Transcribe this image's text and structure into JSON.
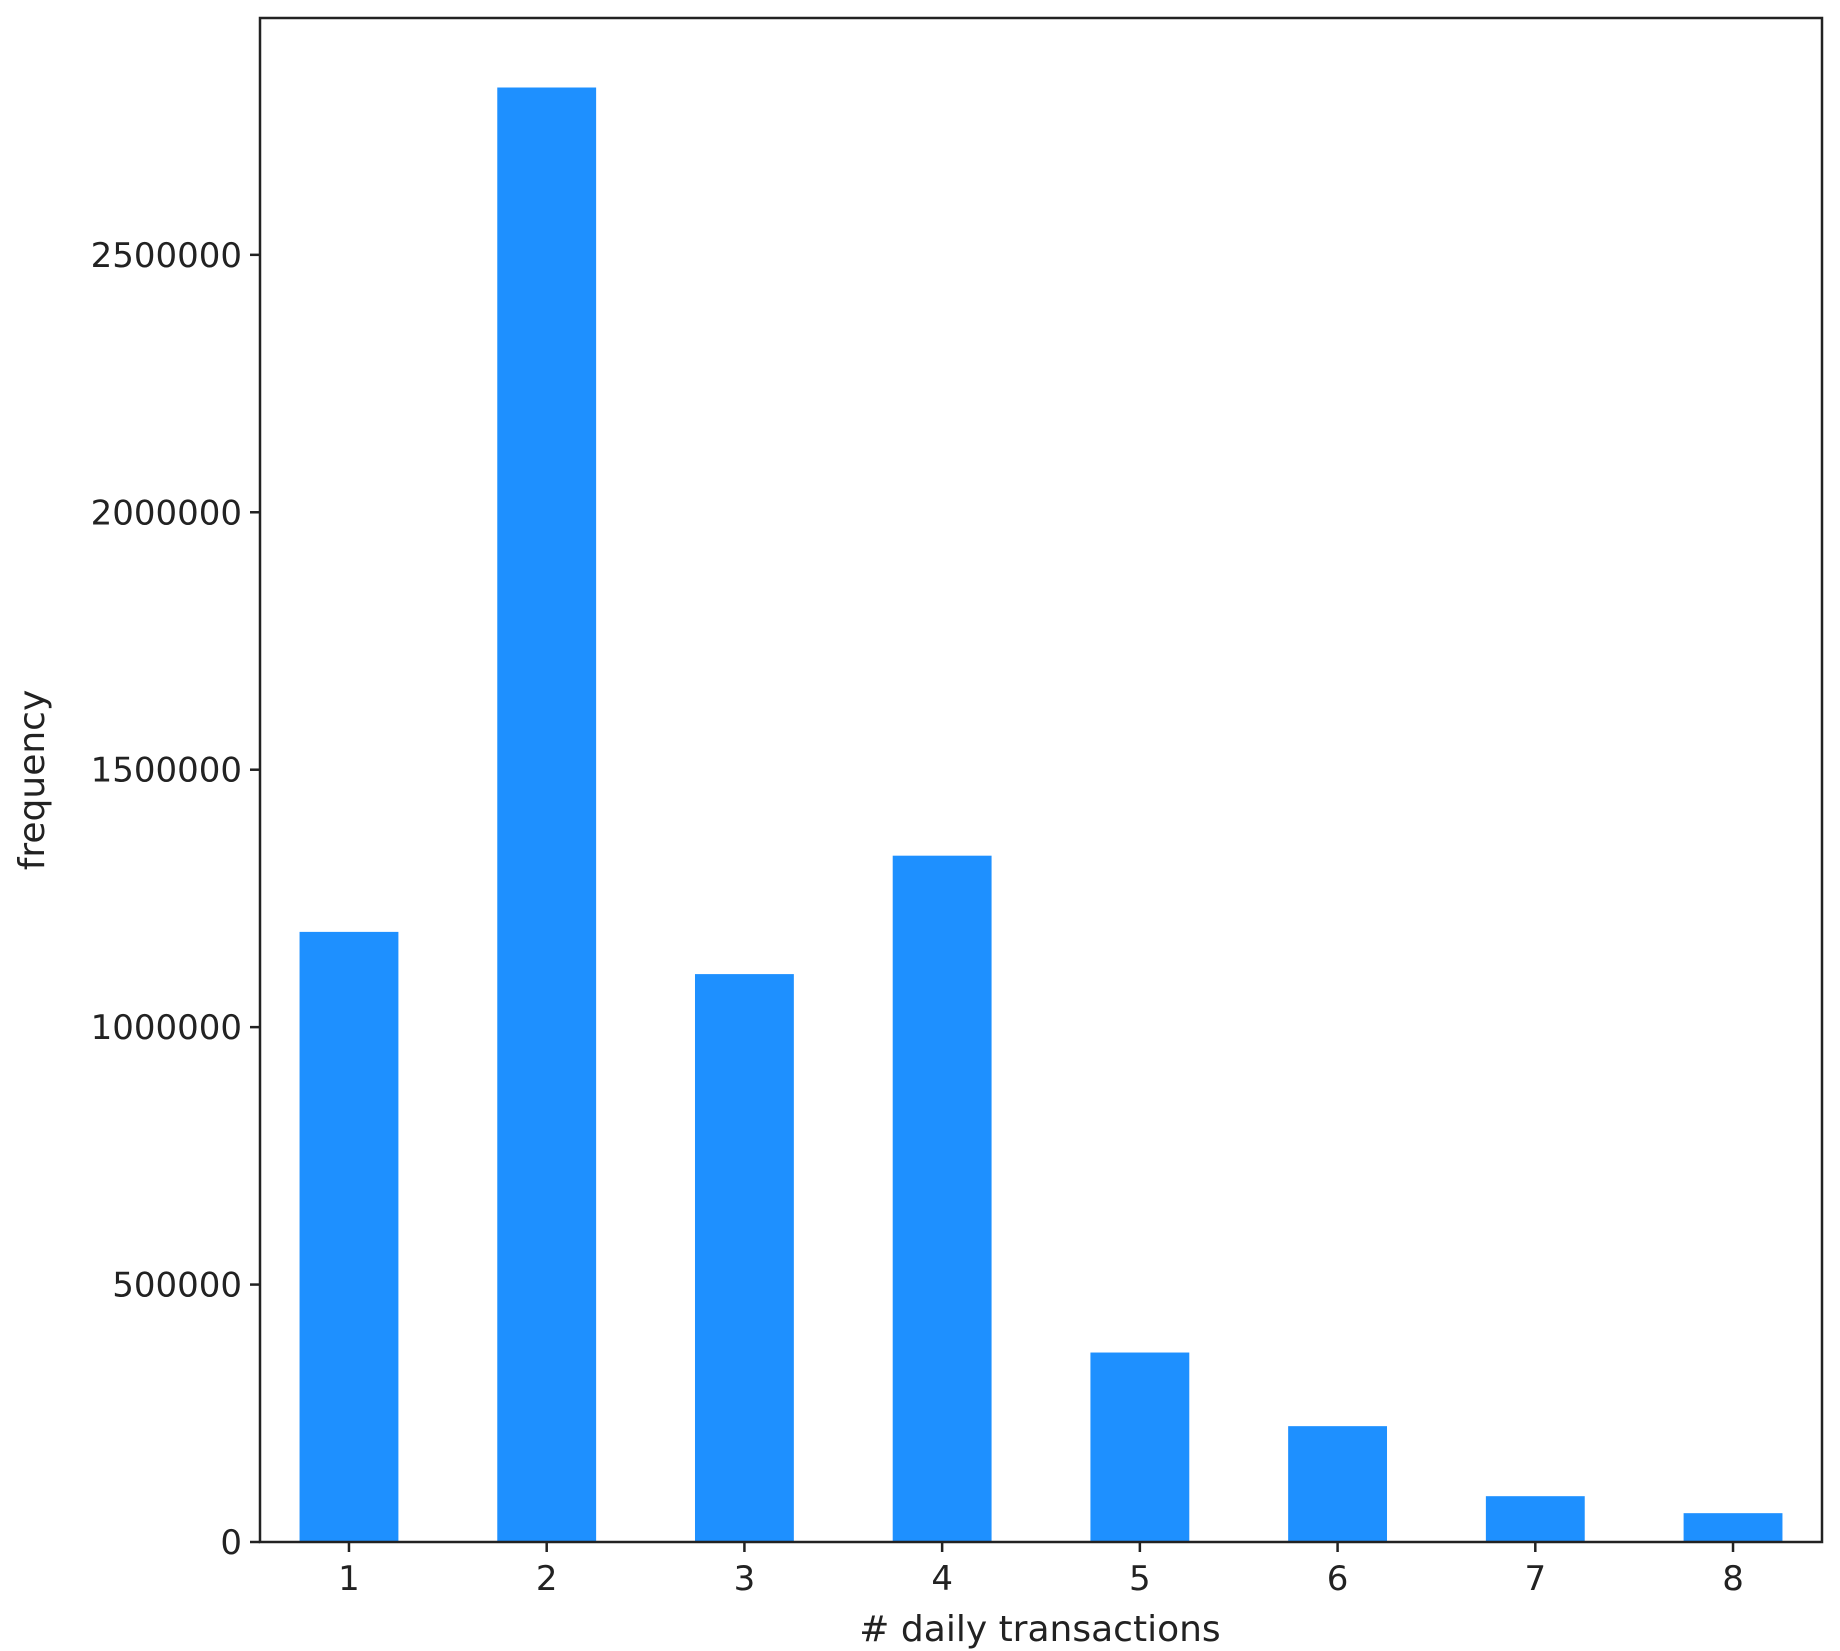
{
  "chart_data": {
    "type": "bar",
    "title": "",
    "xlabel": "# daily transactions",
    "ylabel": "frequency",
    "categories": [
      "1",
      "2",
      "3",
      "4",
      "5",
      "6",
      "7",
      "8"
    ],
    "values": [
      1185000,
      2825000,
      1103000,
      1333000,
      368000,
      225000,
      89000,
      56000
    ],
    "ylim": [
      0,
      2960000
    ],
    "yticks": [
      0,
      500000,
      1000000,
      1500000,
      2000000,
      2500000
    ],
    "ytick_labels": [
      "0",
      "500000",
      "1000000",
      "1500000",
      "2000000",
      "2500000"
    ],
    "grid": false,
    "legend": "none",
    "bar_color": "#1E90FF"
  }
}
